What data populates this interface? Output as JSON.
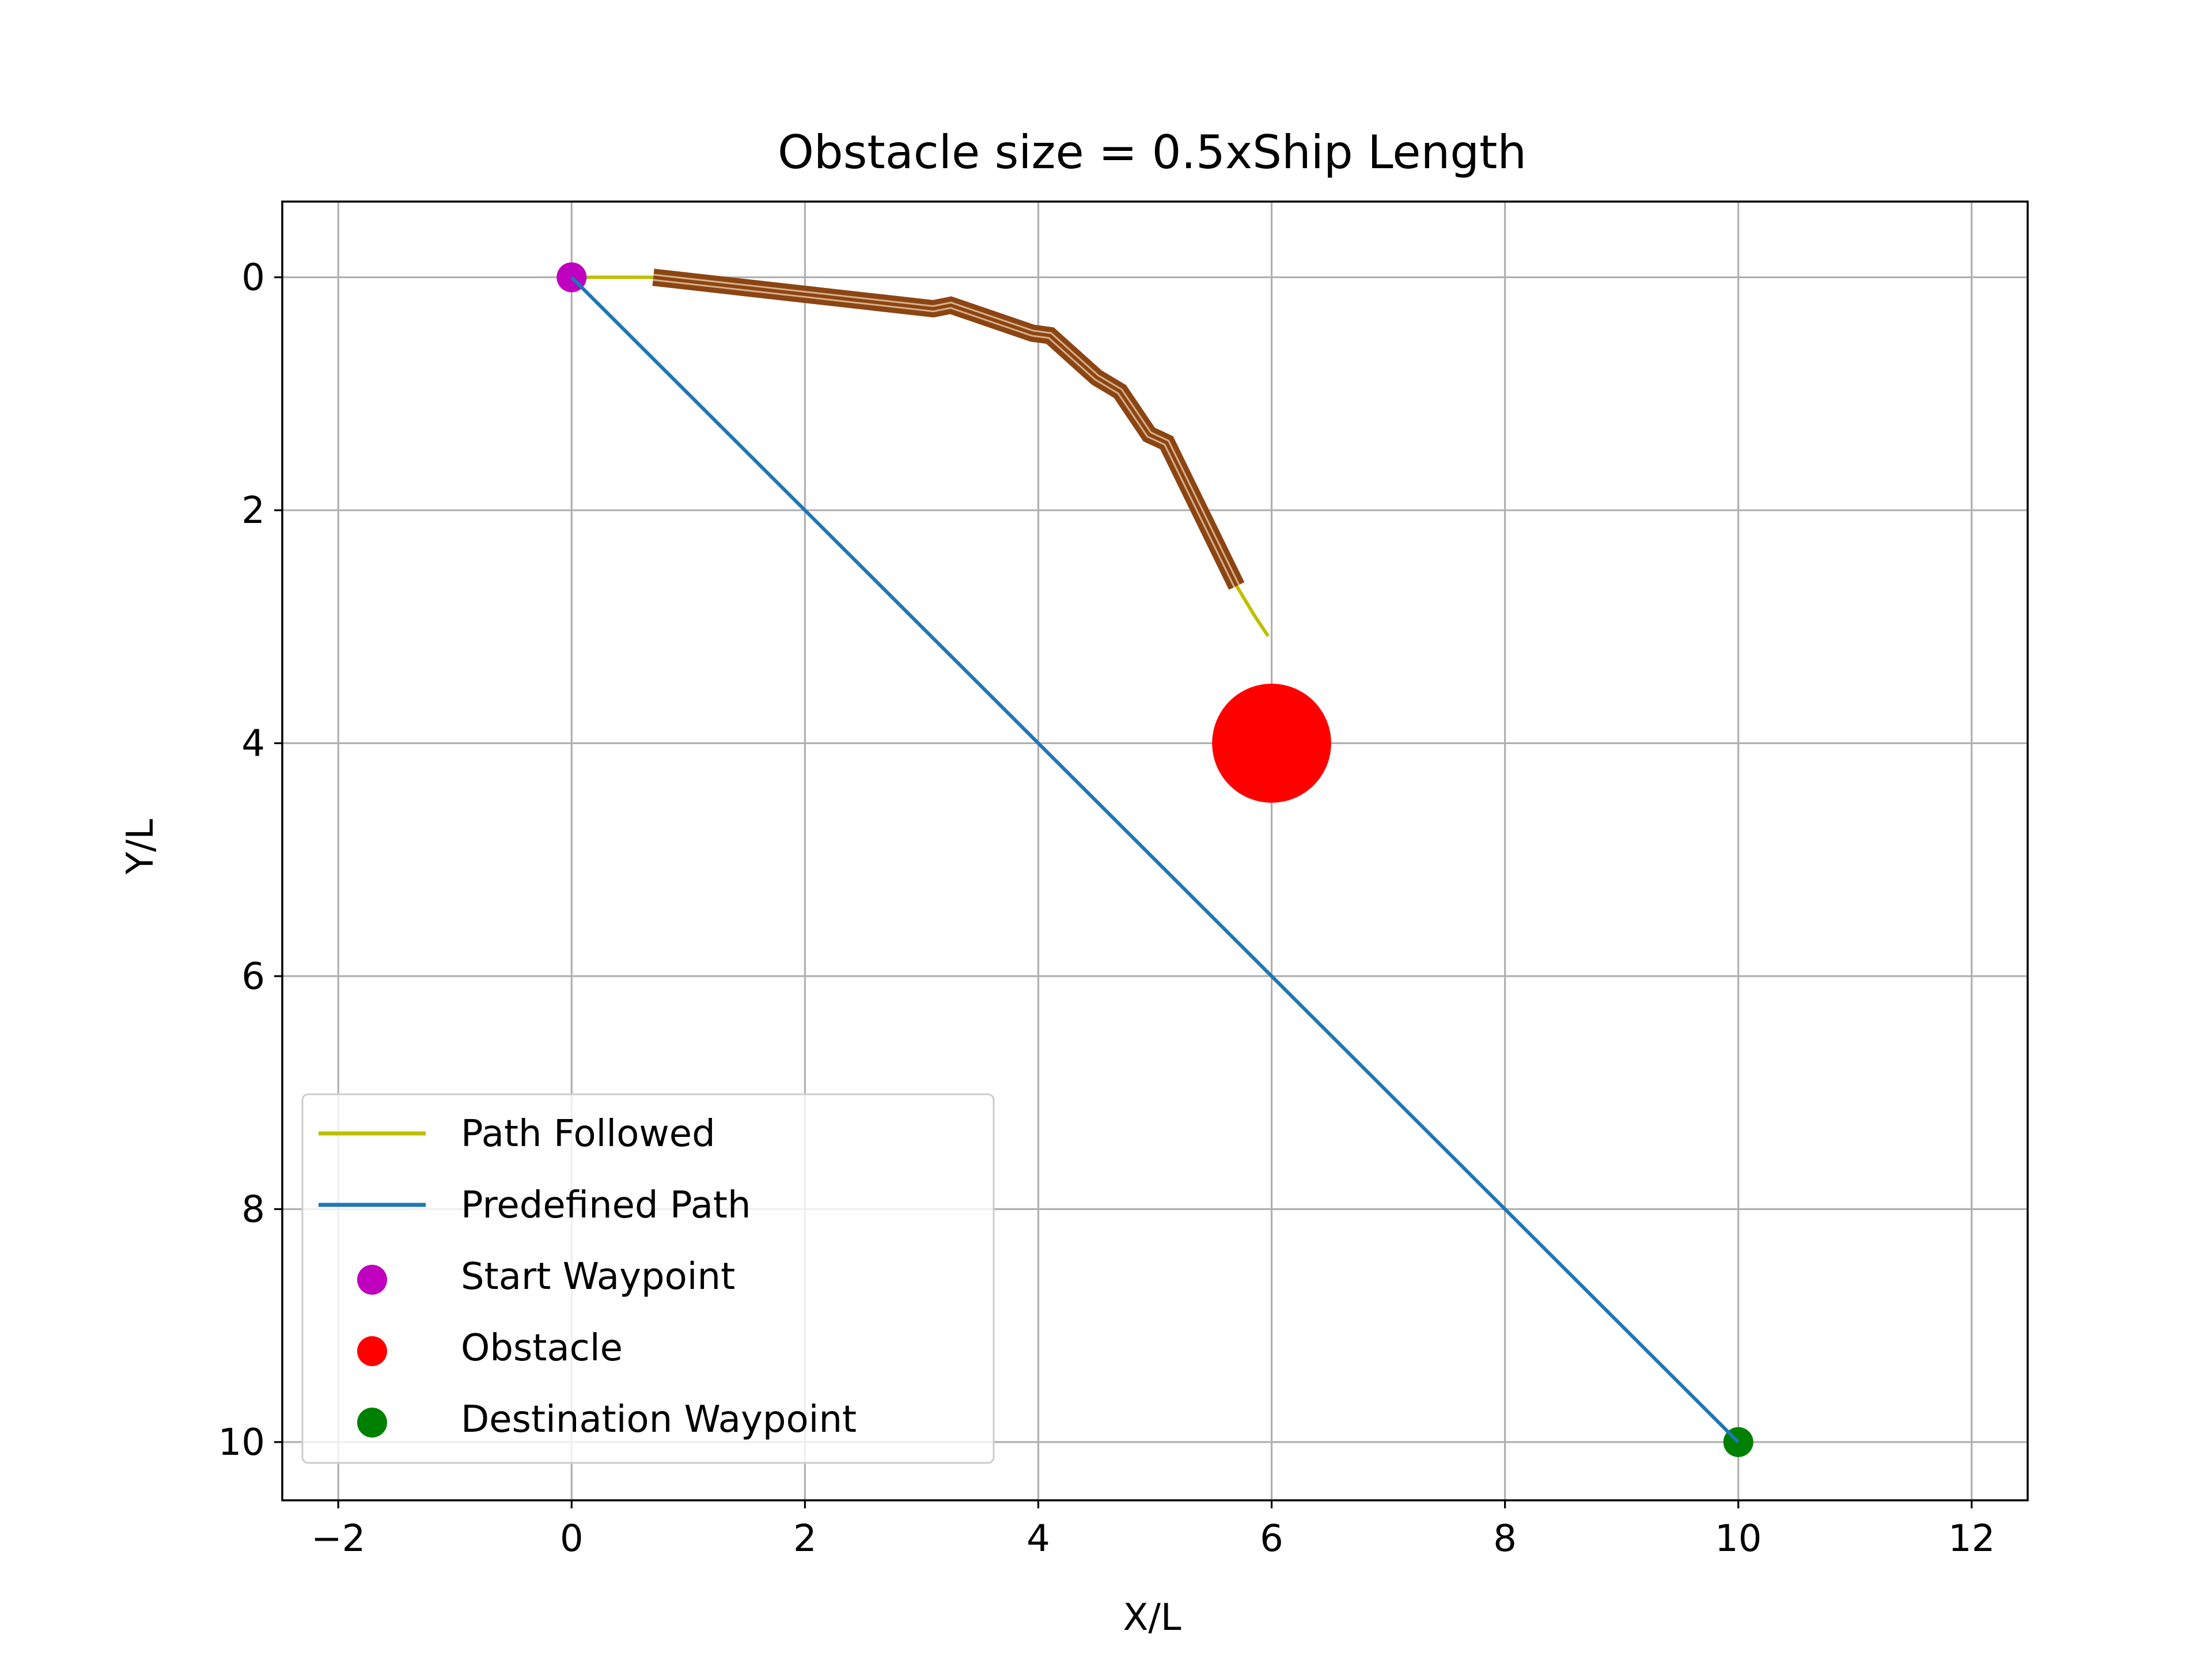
{
  "chart_data": {
    "type": "scatter",
    "title": "Obstacle size = 0.5xShip Length",
    "xlabel": "X/L",
    "ylabel": "Y/L",
    "xlim": [
      -2.48,
      12.48
    ],
    "ylim": [
      10.5,
      -0.65
    ],
    "y_inverted": true,
    "grid": true,
    "xticks": [
      -2,
      0,
      2,
      4,
      6,
      8,
      10,
      12
    ],
    "yticks": [
      0,
      2,
      4,
      6,
      8,
      10
    ],
    "xtick_labels": [
      "−2",
      "0",
      "2",
      "4",
      "6",
      "8",
      "10",
      "12"
    ],
    "ytick_labels": [
      "0",
      "2",
      "4",
      "6",
      "8",
      "10"
    ],
    "legend_placement": "lower-left",
    "series": [
      {
        "name": "Path Followed",
        "kind": "line",
        "color": "#bfbf00",
        "x": [
          0,
          0.3,
          0.7,
          1.5,
          2.3,
          3.1,
          3.25,
          3.95,
          4.1,
          4.5,
          4.7,
          4.95,
          5.1,
          5.7,
          5.85,
          5.97
        ],
        "y": [
          0,
          0,
          0,
          0.09,
          0.18,
          0.27,
          0.24,
          0.48,
          0.5,
          0.86,
          0.98,
          1.35,
          1.42,
          2.65,
          2.9,
          3.08
        ]
      },
      {
        "name": "Predefined Path",
        "kind": "line",
        "color": "#1f77b4",
        "x": [
          0,
          10
        ],
        "y": [
          0,
          10
        ]
      },
      {
        "name": "Start Waypoint",
        "kind": "marker",
        "color": "#bf00bf",
        "x": [
          0
        ],
        "y": [
          0
        ]
      },
      {
        "name": "Obstacle",
        "kind": "marker",
        "color": "#ff0000",
        "x": [
          6
        ],
        "y": [
          4
        ],
        "radius": 0.5
      },
      {
        "name": "Destination Waypoint",
        "kind": "marker",
        "color": "#008000",
        "x": [
          10
        ],
        "y": [
          10
        ]
      }
    ],
    "ship_hull_color": "#8b4513",
    "ship_hull_x": [
      0.7,
      1.5,
      2.3,
      3.1,
      3.25,
      3.95,
      4.1,
      4.5,
      4.7,
      4.95,
      5.1,
      5.7
    ],
    "ship_hull_y": [
      0,
      0.09,
      0.18,
      0.27,
      0.24,
      0.48,
      0.5,
      0.86,
      0.98,
      1.35,
      1.42,
      2.65
    ]
  }
}
